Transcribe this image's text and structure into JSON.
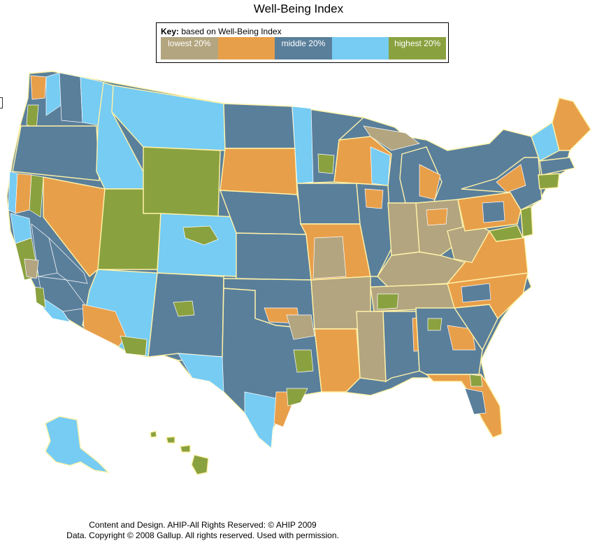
{
  "title": "Well-Being Index",
  "key": {
    "prefix": "Key:",
    "text": "based on Well-Being Index",
    "categories": [
      {
        "label": "lowest 20%",
        "color": "#b3a57f"
      },
      {
        "label": "",
        "color": "#e89f4a"
      },
      {
        "label": "middle 20%",
        "color": "#5a7f9b"
      },
      {
        "label": "",
        "color": "#76ccf2"
      },
      {
        "label": "highest 20%",
        "color": "#8aa13f"
      }
    ]
  },
  "footer": {
    "line1": "Content and Design. AHIP-All Rights Reserved: © AHIP 2009",
    "line2": "Data. Copyright © 2008 Gallup. All rights reserved. Used with permission."
  }
}
